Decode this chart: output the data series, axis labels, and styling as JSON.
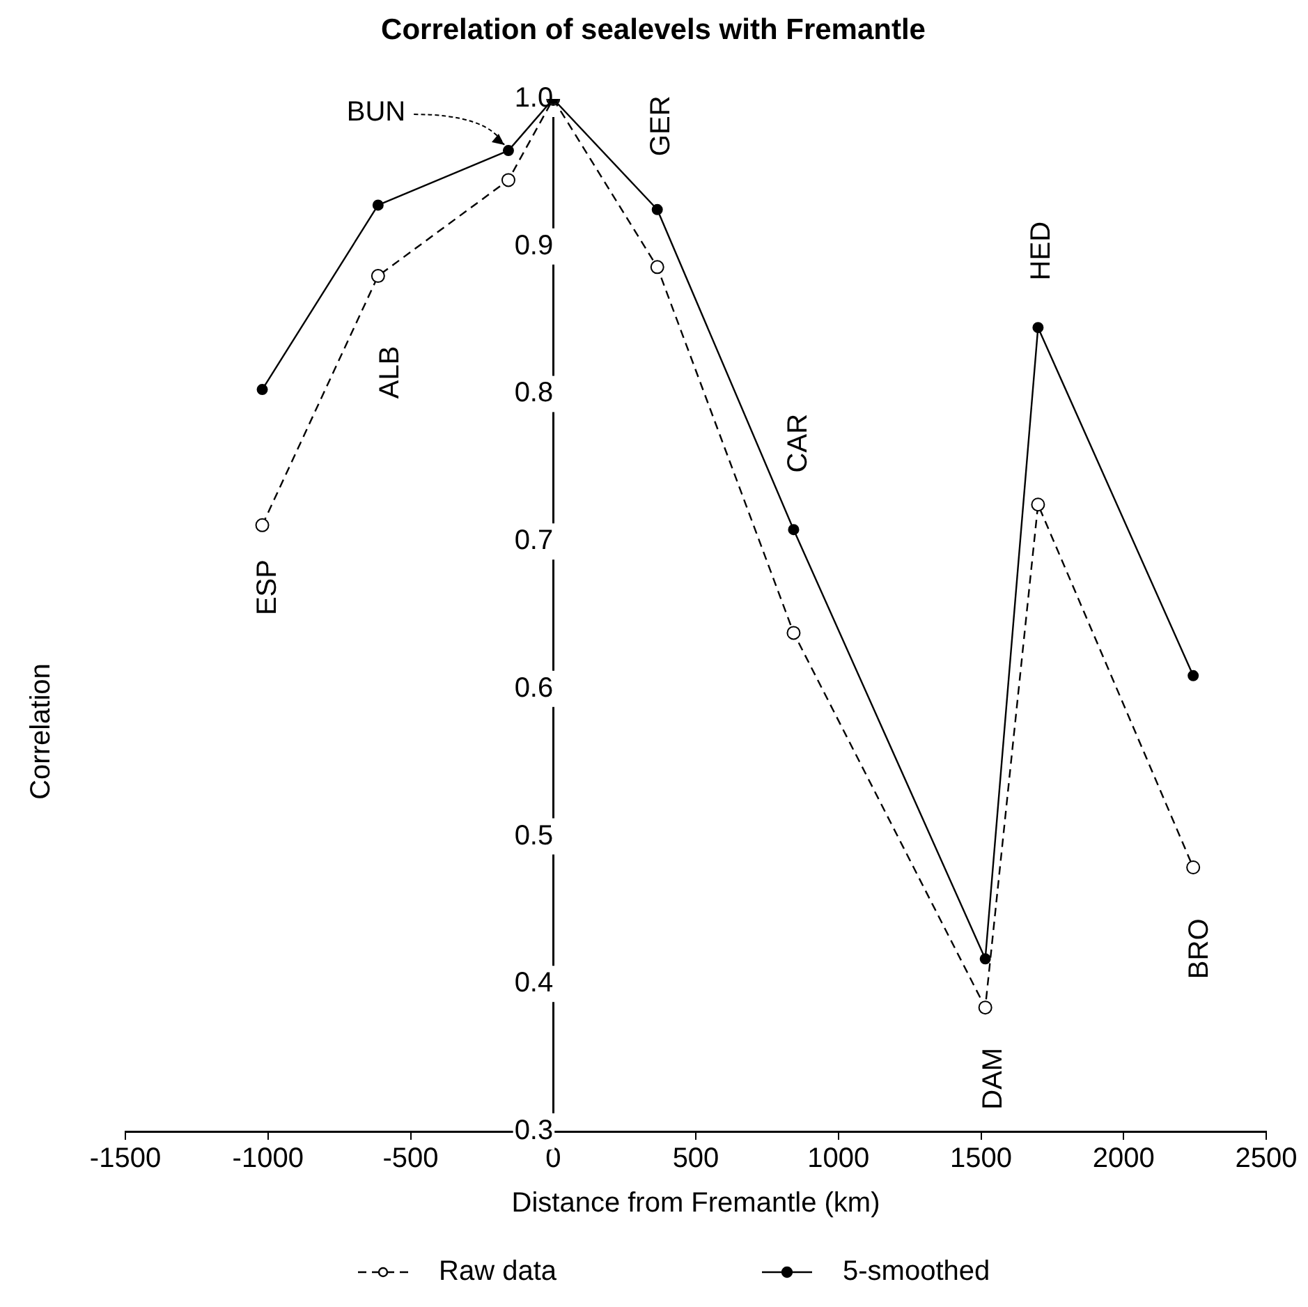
{
  "chart_data": {
    "type": "line",
    "title": "Correlation of sealevels with Fremantle",
    "xlabel": "Distance from Fremantle (km)",
    "ylabel": "Correlation",
    "x": [
      -1020,
      -614,
      -157,
      0,
      365,
      843,
      1515,
      1700,
      2244
    ],
    "series": [
      {
        "name": "Raw data",
        "color": "#000000",
        "line_style": "dashed",
        "values": [
          0.711,
          0.88,
          0.945,
          1.0,
          0.886,
          0.638,
          0.384,
          0.725,
          0.479
        ]
      },
      {
        "name": "5-smoothed",
        "color": "#000000",
        "line_style": "solid",
        "values": [
          0.803,
          0.928,
          0.965,
          1.0,
          0.925,
          0.708,
          0.417,
          0.845,
          0.609
        ]
      }
    ],
    "xlim": [
      -1500,
      2500
    ],
    "xticks": [
      -1500,
      -1000,
      -500,
      0,
      500,
      1000,
      1500,
      2000,
      2500
    ],
    "ylim": [
      0.3,
      1.0
    ],
    "yticks": [
      {
        "value": 0.3,
        "label": "0.3"
      },
      {
        "value": 0.4,
        "label": "0.4"
      },
      {
        "value": 0.5,
        "label": "0.5"
      },
      {
        "value": 0.6,
        "label": "0.6"
      },
      {
        "value": 0.7,
        "label": "0.7"
      },
      {
        "value": 0.8,
        "label": "0.8"
      },
      {
        "value": 0.9,
        "label": "0.9"
      },
      {
        "value": 1.0,
        "label": "1.0"
      }
    ],
    "annotations": [
      "ESP",
      "ALB",
      {
        "text": "BUN",
        "x": -157,
        "y": 0.965
      },
      {
        "text": "GER",
        "x": 365,
        "y": 0.925
      },
      {
        "text": "CAR",
        "x": 843,
        "y": 0.708
      },
      "DAM",
      {
        "text": "HED",
        "x": 1700,
        "y": 0.845
      },
      "BRO"
    ],
    "marker": "circle",
    "grid": false,
    "legend": "bottom"
  }
}
